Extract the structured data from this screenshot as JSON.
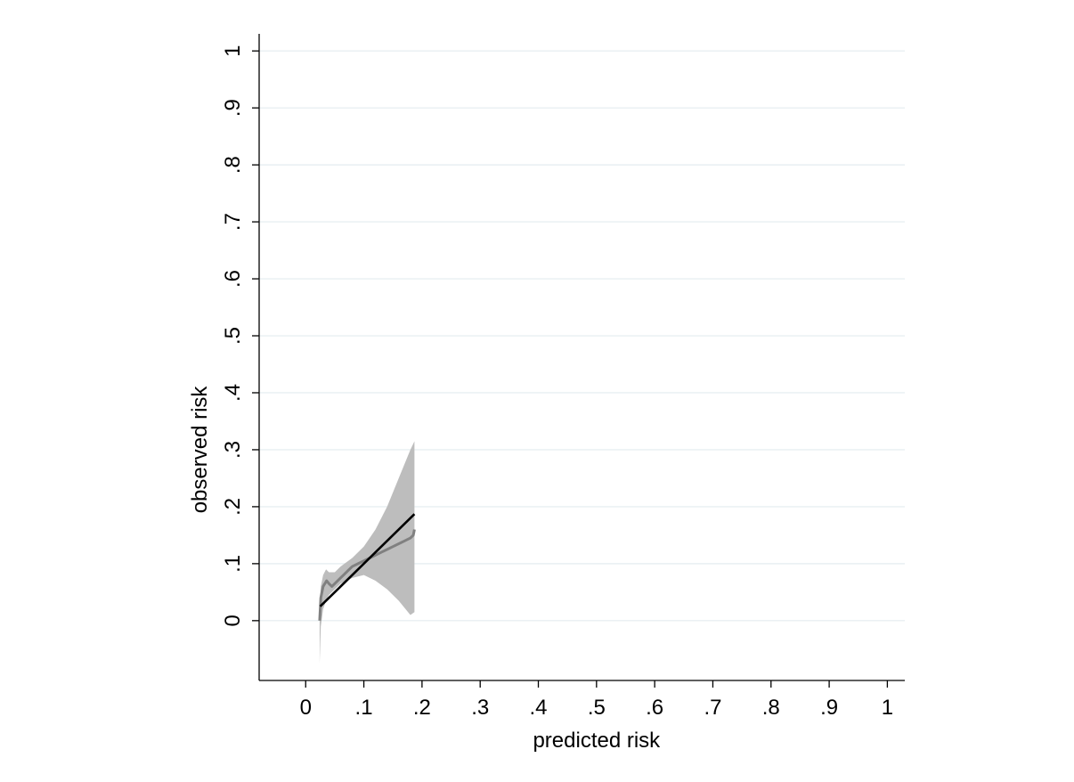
{
  "chart_data": {
    "type": "line",
    "title": "",
    "xlabel": "predicted risk",
    "ylabel": "observed risk",
    "xlim": [
      -0.08,
      1.03
    ],
    "ylim": [
      -0.105,
      1.03
    ],
    "x_ticks": [
      0,
      0.1,
      0.2,
      0.3,
      0.4,
      0.5,
      0.6,
      0.7,
      0.8,
      0.9,
      1
    ],
    "x_tick_labels": [
      "0",
      ".1",
      ".2",
      ".3",
      ".4",
      ".5",
      ".6",
      ".7",
      ".8",
      ".9",
      "1"
    ],
    "y_ticks": [
      0,
      0.1,
      0.2,
      0.3,
      0.4,
      0.5,
      0.6,
      0.7,
      0.8,
      0.9,
      1
    ],
    "y_tick_labels": [
      "0",
      ".1",
      ".2",
      ".3",
      ".4",
      ".5",
      ".6",
      ".7",
      ".8",
      ".9",
      "1"
    ],
    "grid": "horizontal",
    "series": [
      {
        "kind": "band",
        "color": "#bdbdbd",
        "x": [
          0.024,
          0.026,
          0.03,
          0.035,
          0.04,
          0.05,
          0.06,
          0.08,
          0.1,
          0.12,
          0.14,
          0.16,
          0.18,
          0.187
        ],
        "upper": [
          0.02,
          0.06,
          0.08,
          0.09,
          0.085,
          0.085,
          0.095,
          0.11,
          0.13,
          0.16,
          0.2,
          0.25,
          0.3,
          0.315
        ],
        "lower": [
          -0.075,
          -0.01,
          0.02,
          0.035,
          0.045,
          0.055,
          0.065,
          0.075,
          0.08,
          0.07,
          0.055,
          0.035,
          0.01,
          0.015
        ]
      },
      {
        "kind": "line",
        "color": "#808080",
        "x": [
          0.024,
          0.026,
          0.028,
          0.03,
          0.033,
          0.036,
          0.04,
          0.045,
          0.05,
          0.055,
          0.06,
          0.065,
          0.07,
          0.08,
          0.09,
          0.1,
          0.11,
          0.12,
          0.13,
          0.14,
          0.15,
          0.16,
          0.17,
          0.18,
          0.185,
          0.187
        ],
        "y": [
          0.0,
          0.04,
          0.05,
          0.06,
          0.065,
          0.07,
          0.065,
          0.06,
          0.065,
          0.07,
          0.075,
          0.08,
          0.085,
          0.095,
          0.1,
          0.105,
          0.11,
          0.115,
          0.12,
          0.125,
          0.13,
          0.135,
          0.14,
          0.145,
          0.15,
          0.16
        ]
      },
      {
        "kind": "line",
        "color": "#000000",
        "x": [
          0.025,
          0.187
        ],
        "y": [
          0.025,
          0.187
        ]
      }
    ]
  }
}
